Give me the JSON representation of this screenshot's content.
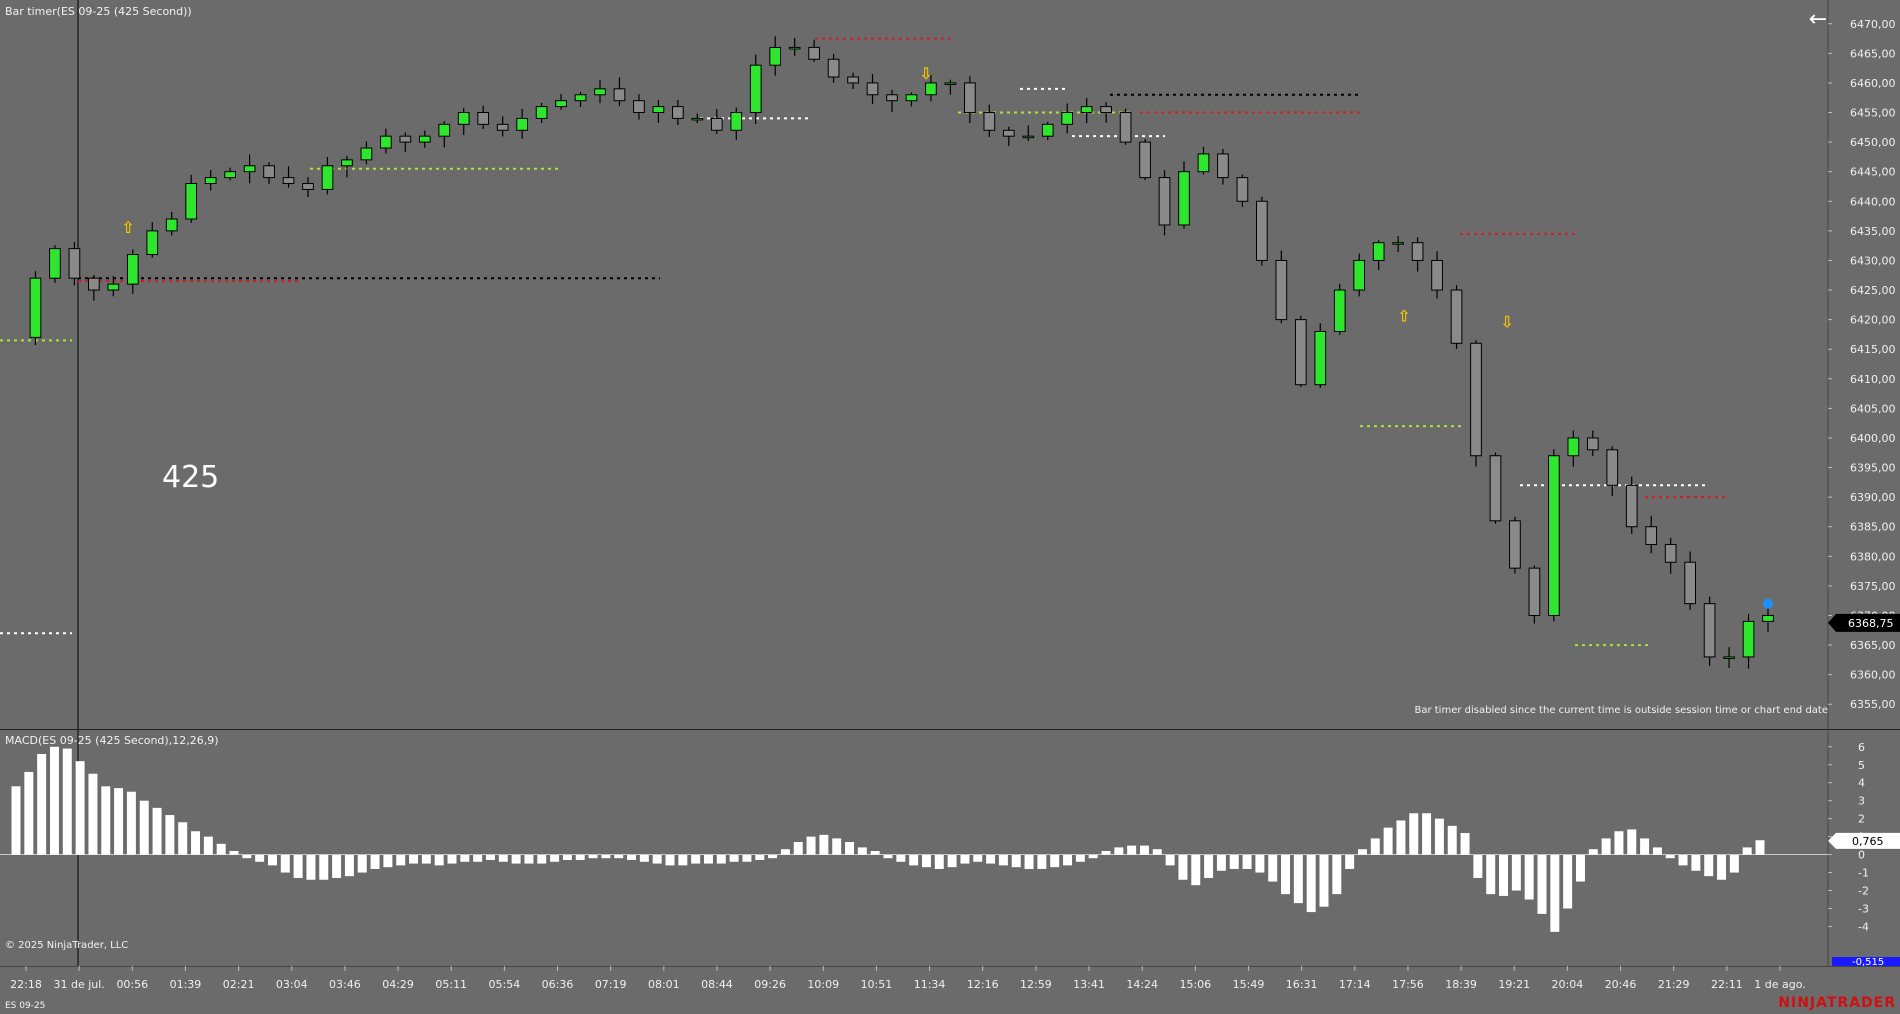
{
  "window": {
    "title": "Bar timer(ES 09-25 (425 Second))"
  },
  "overlay": {
    "big_label": "425",
    "notice": "Bar timer disabled since the current time is outside session time or chart end date",
    "copyright": "© 2025 NinjaTrader, LLC",
    "instrument": "ES 09-25",
    "brand": "NINJATRADER",
    "back_icon": "arrow-left-icon"
  },
  "indicator": {
    "label": "MACD(ES 09-25 (425 Second),12,26,9)"
  },
  "chart_data": [
    {
      "type": "candlestick",
      "title": "Bar timer(ES 09-25 (425 Second))",
      "ylim": [
        6352,
        6473
      ],
      "y_ticks": [
        6470,
        6465,
        6460,
        6455,
        6450,
        6445,
        6440,
        6435,
        6430,
        6425,
        6420,
        6415,
        6410,
        6405,
        6400,
        6395,
        6390,
        6385,
        6380,
        6375,
        6370,
        6365,
        6360,
        6355
      ],
      "y_tick_labels": [
        "6470,00",
        "6465,00",
        "6460,00",
        "6455,00",
        "6450,00",
        "6445,00",
        "6440,00",
        "6435,00",
        "6430,00",
        "6425,00",
        "6420,00",
        "6415,00",
        "6410,00",
        "6405,00",
        "6400,00",
        "6395,00",
        "6390,00",
        "6385,00",
        "6380,00",
        "6375,00",
        "6370,00",
        "6365,00",
        "6360,00",
        "6355,00"
      ],
      "current_price": 6368.75,
      "current_price_label": "6368,75",
      "x_tick_labels": [
        "22:18",
        "31 de jul.",
        "00:56",
        "01:39",
        "02:21",
        "03:04",
        "03:46",
        "04:29",
        "05:11",
        "05:54",
        "06:36",
        "07:19",
        "08:01",
        "08:44",
        "09:26",
        "10:09",
        "10:51",
        "11:34",
        "12:16",
        "12:59",
        "13:41",
        "14:24",
        "15:06",
        "15:49",
        "16:31",
        "17:14",
        "17:56",
        "18:39",
        "19:21",
        "20:04",
        "20:46",
        "21:29",
        "22:11",
        "1 de ago."
      ],
      "path": [
        6417,
        6427,
        6432,
        6427,
        6425,
        6426,
        6431,
        6435,
        6437,
        6443,
        6444,
        6445,
        6446,
        6444,
        6443,
        6442,
        6446,
        6447,
        6449,
        6451,
        6450,
        6451,
        6453,
        6455,
        6453,
        6452,
        6454,
        6456,
        6457,
        6458,
        6459,
        6457,
        6455,
        6456,
        6454,
        6454,
        6452,
        6455,
        6463,
        6466,
        6466,
        6464,
        6461,
        6460,
        6458,
        6457,
        6458,
        6460,
        6460,
        6455,
        6452,
        6451,
        6451,
        6453,
        6455,
        6456,
        6455,
        6450,
        6444,
        6436,
        6445,
        6448,
        6444,
        6440,
        6430,
        6420,
        6409,
        6418,
        6425,
        6430,
        6433,
        6433,
        6430,
        6425,
        6416,
        6397,
        6386,
        6378,
        6370,
        6397,
        6400,
        6398,
        6392,
        6385,
        6382,
        6379,
        6372,
        6363,
        6363,
        6369,
        6370
      ],
      "markers": [
        {
          "symbol": "arrow-up",
          "price": 6435.5
        },
        {
          "symbol": "arrow-down",
          "price": 6461.5
        },
        {
          "symbol": "arrow-up",
          "price": 6420.5
        },
        {
          "symbol": "arrow-down",
          "price": 6419.5
        },
        {
          "symbol": "dot",
          "price": 6372
        }
      ],
      "levels": [
        {
          "price": 6416.5,
          "color": "#aee23a"
        },
        {
          "price": 6367.0,
          "color": "#ffffff"
        },
        {
          "price": 6427.0,
          "color": "#000000"
        },
        {
          "price": 6426.5,
          "color": "#d21f1f"
        },
        {
          "price": 6445.5,
          "color": "#aee23a"
        },
        {
          "price": 6467.5,
          "color": "#d21f1f"
        },
        {
          "price": 6458.0,
          "color": "#000000"
        },
        {
          "price": 6455.0,
          "color": "#d21f1f"
        },
        {
          "price": 6455.0,
          "color": "#aee23a"
        },
        {
          "price": 6459.0,
          "color": "#ffffff"
        },
        {
          "price": 6451.0,
          "color": "#ffffff"
        },
        {
          "price": 6454.0,
          "color": "#ffffff"
        },
        {
          "price": 6434.5,
          "color": "#d21f1f"
        },
        {
          "price": 6402.0,
          "color": "#aee23a"
        },
        {
          "price": 6392.0,
          "color": "#ffffff"
        },
        {
          "price": 6390.0,
          "color": "#d21f1f"
        },
        {
          "price": 6365.0,
          "color": "#aee23a"
        }
      ]
    },
    {
      "type": "bar",
      "title": "MACD(ES 09-25 (425 Second),12,26,9)",
      "ylim": [
        -6.2,
        6.6
      ],
      "y_ticks": [
        6,
        5,
        4,
        3,
        2,
        1,
        0,
        -1,
        -2,
        -3,
        -4
      ],
      "y_tick_labels": [
        "6",
        "5",
        "4",
        "3",
        "2",
        "1",
        "0",
        "-1",
        "-2",
        "-3",
        "-4"
      ],
      "current_value_label": "0,765",
      "lower_value_label": "-0,515",
      "values": [
        3.8,
        4.6,
        5.6,
        6.0,
        5.9,
        5.2,
        4.5,
        3.8,
        3.7,
        3.5,
        3.0,
        2.6,
        2.2,
        1.8,
        1.3,
        1.0,
        0.6,
        0.2,
        -0.2,
        -0.4,
        -0.6,
        -1.0,
        -1.3,
        -1.4,
        -1.4,
        -1.3,
        -1.2,
        -1.0,
        -0.8,
        -0.7,
        -0.6,
        -0.5,
        -0.5,
        -0.6,
        -0.5,
        -0.4,
        -0.4,
        -0.3,
        -0.4,
        -0.5,
        -0.5,
        -0.5,
        -0.4,
        -0.3,
        -0.3,
        -0.2,
        -0.2,
        -0.2,
        -0.3,
        -0.4,
        -0.5,
        -0.6,
        -0.6,
        -0.5,
        -0.5,
        -0.5,
        -0.4,
        -0.4,
        -0.3,
        -0.2,
        0.3,
        0.7,
        1.0,
        1.1,
        0.9,
        0.7,
        0.4,
        0.2,
        -0.2,
        -0.4,
        -0.6,
        -0.7,
        -0.8,
        -0.7,
        -0.5,
        -0.4,
        -0.5,
        -0.6,
        -0.7,
        -0.8,
        -0.8,
        -0.7,
        -0.6,
        -0.4,
        -0.2,
        0.2,
        0.4,
        0.5,
        0.5,
        0.3,
        -0.6,
        -1.4,
        -1.7,
        -1.3,
        -0.9,
        -0.8,
        -0.8,
        -1.0,
        -1.5,
        -2.2,
        -2.7,
        -3.2,
        -2.9,
        -2.2,
        -0.8,
        0.3,
        0.9,
        1.5,
        1.9,
        2.3,
        2.3,
        2.0,
        1.6,
        1.2,
        -1.3,
        -2.2,
        -2.3,
        -2.0,
        -2.5,
        -3.3,
        -4.3,
        -3.0,
        -1.5,
        0.3,
        0.9,
        1.3,
        1.4,
        0.9,
        0.4,
        -0.2,
        -0.6,
        -0.9,
        -1.2,
        -1.4,
        -1.0,
        0.4,
        0.8
      ]
    }
  ]
}
